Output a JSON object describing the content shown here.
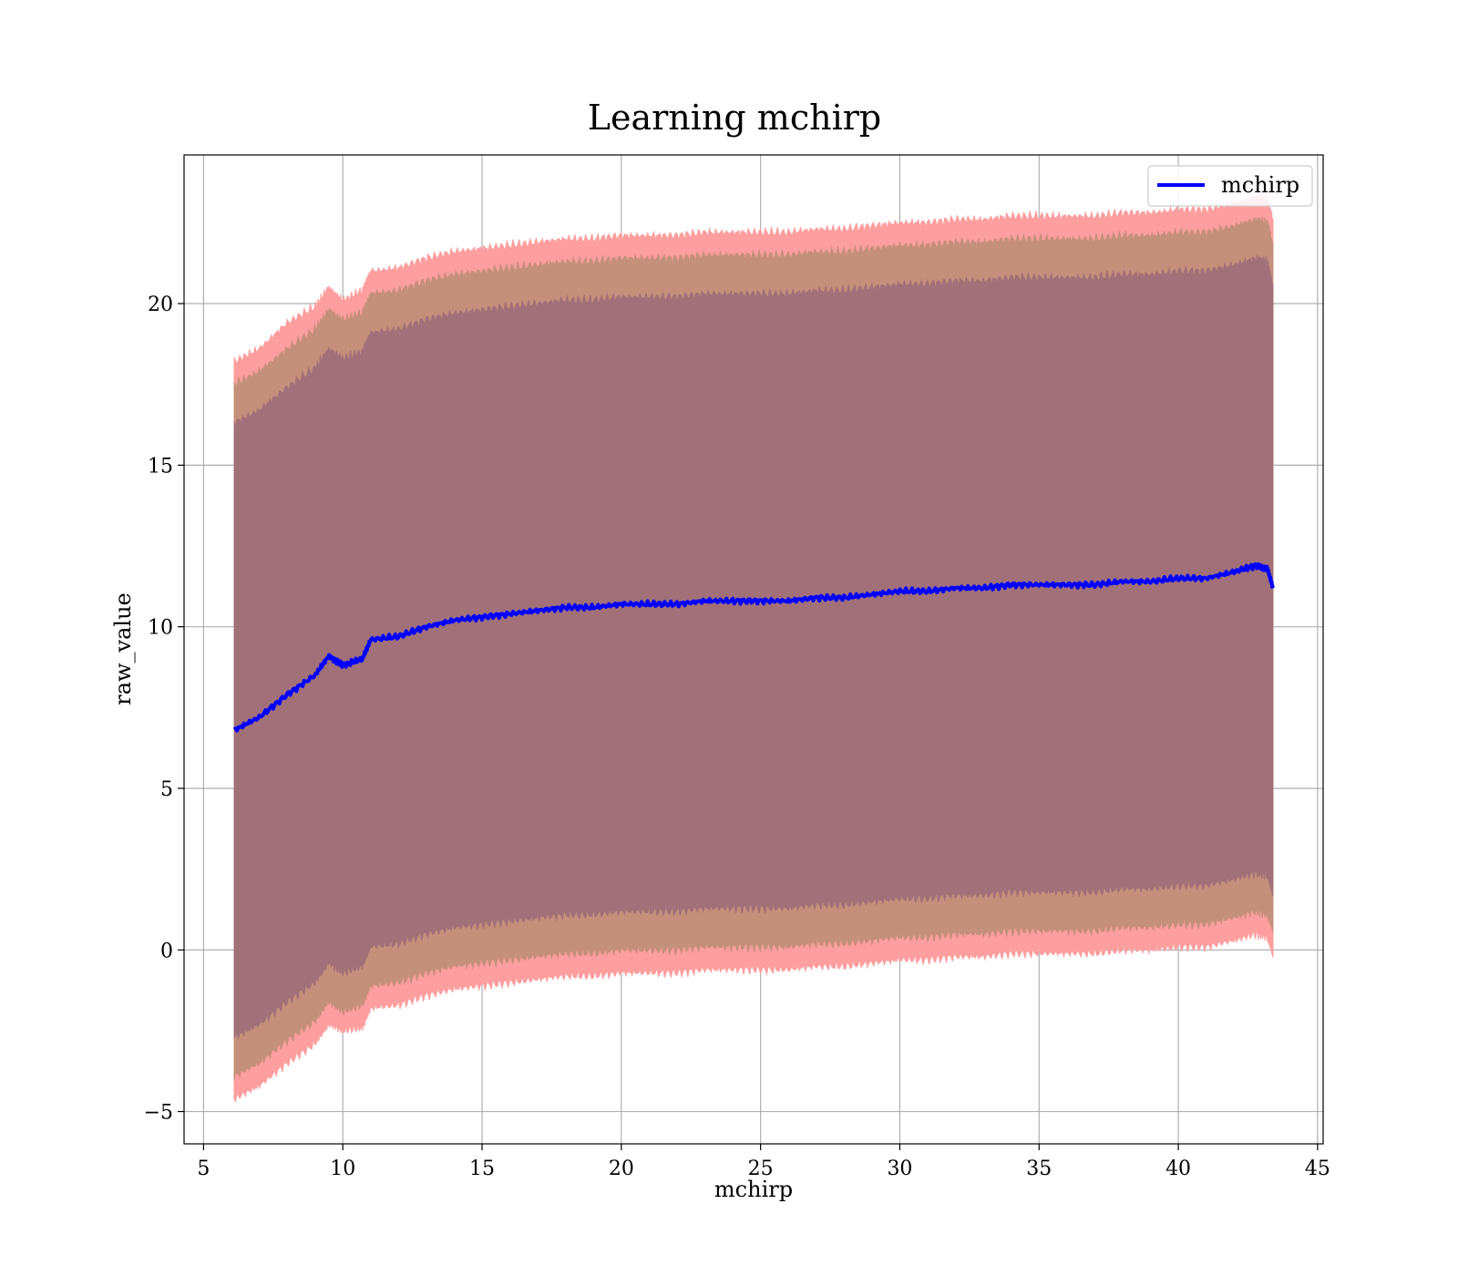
{
  "chart_data": {
    "type": "area",
    "title": "Learning mchirp",
    "xlabel": "mchirp",
    "ylabel": "raw_value",
    "xlim": [
      4.3,
      45.2
    ],
    "ylim": [
      -6,
      24.6
    ],
    "x_ticks": [
      5,
      10,
      15,
      20,
      25,
      30,
      35,
      40,
      45
    ],
    "x_tick_labels": [
      "5",
      "10",
      "15",
      "20",
      "25",
      "30",
      "35",
      "40",
      "45"
    ],
    "y_ticks": [
      -5,
      0,
      5,
      10,
      15,
      20
    ],
    "y_tick_labels": [
      "−5",
      "0",
      "5",
      "10",
      "15",
      "20"
    ],
    "grid": true,
    "legend": {
      "position": "top-right",
      "entries": [
        {
          "label": "mchirp",
          "color": "#0000ff"
        }
      ]
    },
    "colors": {
      "line": "#0000ff",
      "band_3sigma": "#ff9e9e",
      "band_2sigma": "#c4907b",
      "band_1sigma": "#a17079"
    },
    "x": [
      6.1,
      7,
      8,
      9,
      9.5,
      10,
      10.7,
      11,
      12,
      13,
      14,
      15,
      16,
      17,
      18,
      19,
      20,
      21,
      22,
      23,
      24,
      25,
      26,
      27,
      28,
      29,
      30,
      31,
      32,
      33,
      34,
      35,
      36,
      37,
      38,
      39,
      40,
      41,
      42,
      42.8,
      43.2,
      43.4
    ],
    "series": [
      {
        "name": "mchirp",
        "values": [
          6.8,
          7.2,
          7.9,
          8.5,
          9.1,
          8.8,
          9.0,
          9.6,
          9.7,
          10.0,
          10.2,
          10.3,
          10.4,
          10.5,
          10.6,
          10.6,
          10.7,
          10.7,
          10.7,
          10.8,
          10.8,
          10.8,
          10.8,
          10.9,
          10.9,
          11.0,
          11.1,
          11.1,
          11.2,
          11.2,
          11.3,
          11.3,
          11.3,
          11.3,
          11.4,
          11.4,
          11.5,
          11.5,
          11.7,
          11.9,
          11.8,
          11.2
        ]
      }
    ],
    "bands": [
      {
        "level": "3-sigma",
        "upper": [
          18.2,
          18.6,
          19.4,
          19.9,
          20.5,
          20.1,
          20.4,
          21.0,
          21.1,
          21.4,
          21.6,
          21.7,
          21.8,
          21.9,
          22.0,
          22.0,
          22.1,
          22.1,
          22.1,
          22.2,
          22.2,
          22.2,
          22.2,
          22.3,
          22.3,
          22.4,
          22.5,
          22.5,
          22.6,
          22.6,
          22.7,
          22.7,
          22.7,
          22.7,
          22.8,
          22.8,
          22.9,
          22.9,
          23.1,
          23.3,
          23.2,
          22.6
        ],
        "lower": [
          -4.6,
          -4.2,
          -3.5,
          -2.9,
          -2.3,
          -2.5,
          -2.4,
          -1.8,
          -1.7,
          -1.4,
          -1.2,
          -1.1,
          -1.0,
          -0.9,
          -0.8,
          -0.8,
          -0.7,
          -0.7,
          -0.7,
          -0.6,
          -0.6,
          -0.6,
          -0.6,
          -0.5,
          -0.5,
          -0.4,
          -0.3,
          -0.3,
          -0.2,
          -0.2,
          -0.1,
          -0.1,
          -0.1,
          -0.1,
          0.0,
          0.0,
          0.1,
          0.1,
          0.3,
          0.5,
          0.4,
          -0.2
        ]
      },
      {
        "level": "2-sigma",
        "upper": [
          17.5,
          17.9,
          18.6,
          19.2,
          19.8,
          19.5,
          19.7,
          20.3,
          20.4,
          20.7,
          20.9,
          21.0,
          21.1,
          21.2,
          21.3,
          21.3,
          21.4,
          21.4,
          21.4,
          21.5,
          21.5,
          21.5,
          21.5,
          21.6,
          21.6,
          21.7,
          21.8,
          21.8,
          21.9,
          21.9,
          22.0,
          22.0,
          22.0,
          22.0,
          22.1,
          22.1,
          22.2,
          22.2,
          22.4,
          22.6,
          22.5,
          21.8
        ],
        "lower": [
          -3.9,
          -3.5,
          -2.8,
          -2.2,
          -1.6,
          -1.9,
          -1.7,
          -1.1,
          -1.0,
          -0.7,
          -0.5,
          -0.4,
          -0.3,
          -0.2,
          -0.1,
          -0.1,
          0.0,
          0.0,
          0.0,
          0.1,
          0.1,
          0.1,
          0.1,
          0.2,
          0.2,
          0.3,
          0.4,
          0.4,
          0.5,
          0.5,
          0.6,
          0.6,
          0.6,
          0.6,
          0.7,
          0.7,
          0.8,
          0.8,
          1.0,
          1.2,
          1.1,
          0.6
        ]
      },
      {
        "level": "1-sigma",
        "upper": [
          16.3,
          16.7,
          17.4,
          18.0,
          18.6,
          18.3,
          18.5,
          19.1,
          19.2,
          19.5,
          19.7,
          19.8,
          19.9,
          20.0,
          20.1,
          20.1,
          20.2,
          20.2,
          20.2,
          20.3,
          20.3,
          20.3,
          20.3,
          20.4,
          20.4,
          20.5,
          20.6,
          20.6,
          20.7,
          20.7,
          20.8,
          20.8,
          20.8,
          20.8,
          20.9,
          20.9,
          21.0,
          21.0,
          21.2,
          21.4,
          21.3,
          20.5
        ],
        "lower": [
          -2.7,
          -2.3,
          -1.6,
          -1.0,
          -0.4,
          -0.7,
          -0.5,
          0.1,
          0.2,
          0.5,
          0.7,
          0.8,
          0.9,
          1.0,
          1.1,
          1.1,
          1.2,
          1.2,
          1.2,
          1.3,
          1.3,
          1.3,
          1.3,
          1.4,
          1.4,
          1.5,
          1.6,
          1.6,
          1.7,
          1.7,
          1.8,
          1.8,
          1.8,
          1.8,
          1.9,
          1.9,
          2.0,
          2.0,
          2.2,
          2.4,
          2.3,
          1.7
        ]
      }
    ]
  }
}
